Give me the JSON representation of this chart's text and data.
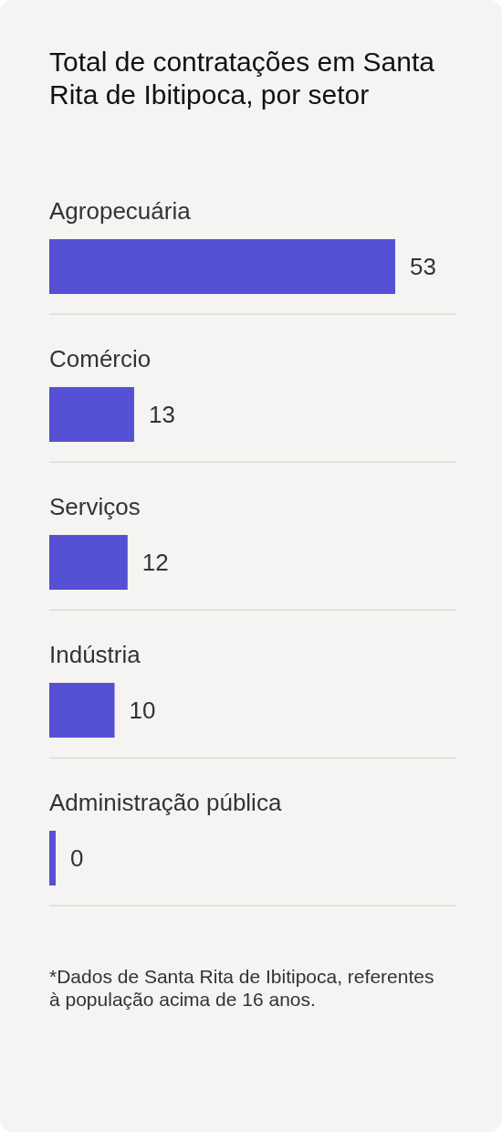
{
  "chart_data": {
    "type": "bar",
    "orientation": "horizontal",
    "title": "Total de contratações em Santa Rita de Ibitipoca, por setor",
    "categories": [
      "Agropecuária",
      "Comércio",
      "Serviços",
      "Indústria",
      "Administração pública"
    ],
    "values": [
      53,
      13,
      12,
      10,
      0
    ],
    "color": "#5650d5",
    "data_labels": true,
    "annotations": [
      "*Dados de Santa Rita de Ibitipoca, referentes à população acima de 16 anos."
    ]
  }
}
